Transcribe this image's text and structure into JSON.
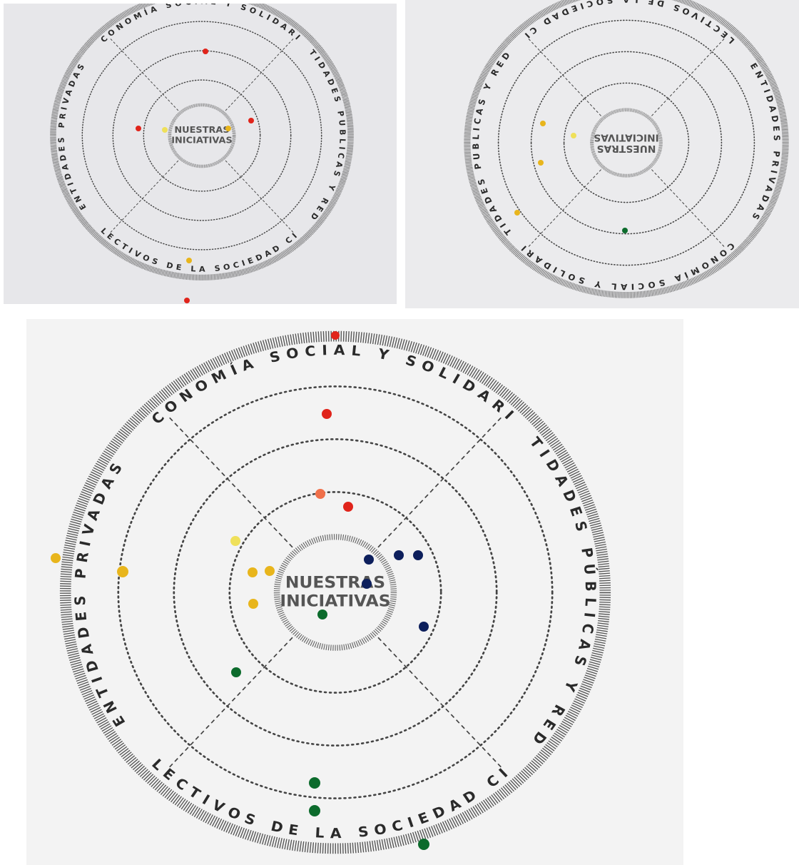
{
  "panels": [
    {
      "center_lines": [
        "NUESTRAS",
        "INICIATIVAS"
      ],
      "sectors": {
        "top": "ECONOMÍA SOCIAL Y SOLIDARIA",
        "right": "ENTIDADES PUBLICAS Y REDES",
        "bottom": "COLECTIVOS DE LA SOCIEDAD CIVIL",
        "left": "ENTIDADES PRIVADAS"
      }
    },
    {
      "center_lines": [
        "NUESTRAS",
        "INICIATIVAS"
      ],
      "sectors": {
        "top": "ECONOMÍA SOCIAL Y SOLIDARIA",
        "right": "ENTIDADES PUBLICAS Y REDES",
        "bottom": "COLECTIVOS DE LA SOCIEDAD CIVIL",
        "left": "ENTIDADES PRIVADAS"
      }
    },
    {
      "center_lines": [
        "NUESTRAS",
        "INICIATIVAS"
      ],
      "sectors": {
        "top": "ECONOMÍA SOCIAL Y SOLIDARIA",
        "right": "ENTIDADES PÚBLICAS Y REDES",
        "bottom": "COLECTIVOS DE LA SOCIEDAD CIVIL",
        "left": "ENTIDADES PRIVADAS"
      }
    }
  ]
}
